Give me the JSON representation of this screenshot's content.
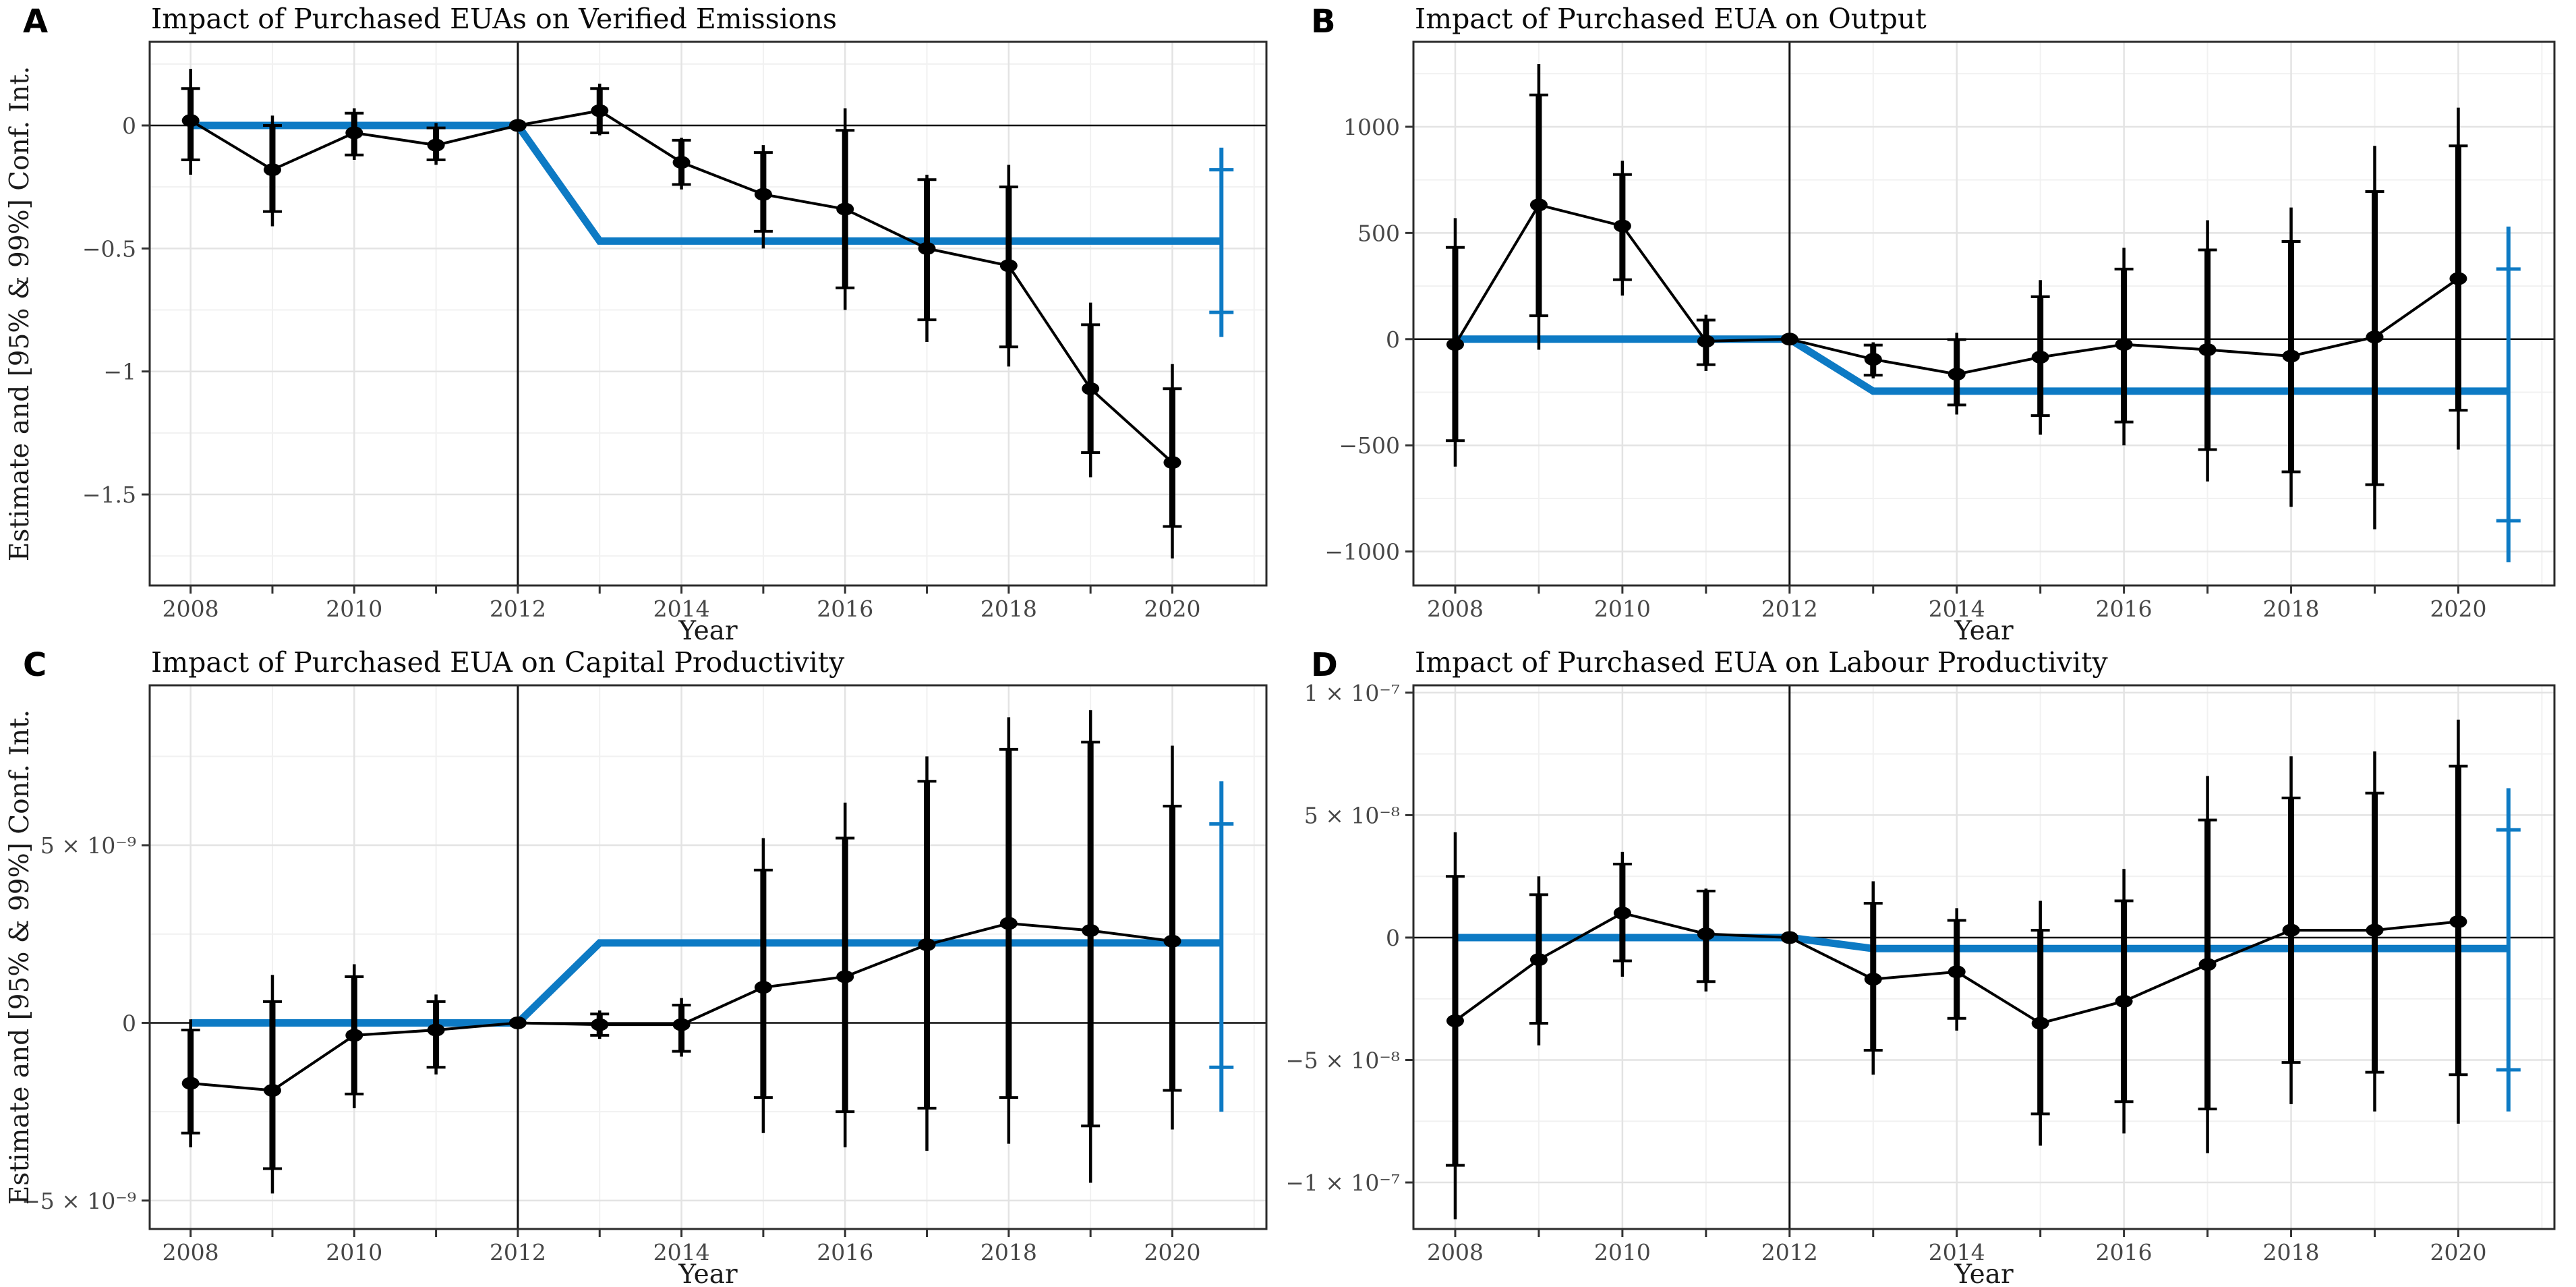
{
  "colors": {
    "policy_blue": "#0d7ac4",
    "series_black": "#000000",
    "grid_major": "#e3e3e3",
    "grid_minor": "#f1f1f1",
    "panel_border": "#2b2b2b",
    "axis_line": "#111111",
    "tick_label": "#474747",
    "background": "#ffffff"
  },
  "chart_data": [
    {
      "type": "line",
      "panel_label": "A",
      "title": "Impact of Purchased EUAs on Verified Emissions",
      "xlabel": "Year",
      "ylabel": "Estimate and [95% & 99%] Conf. Int.",
      "legend_position": "none",
      "grid": true,
      "x": [
        2008,
        2009,
        2010,
        2011,
        2012,
        2013,
        2014,
        2015,
        2016,
        2017,
        2018,
        2019,
        2020
      ],
      "reference_year": 2012,
      "estimates": [
        0.02,
        -0.18,
        -0.03,
        -0.08,
        0,
        0.06,
        -0.15,
        -0.28,
        -0.34,
        -0.5,
        -0.57,
        -1.07,
        -1.37
      ],
      "ci99_lower": [
        -0.2,
        -0.41,
        -0.14,
        -0.16,
        0,
        -0.04,
        -0.26,
        -0.5,
        -0.75,
        -0.88,
        -0.98,
        -1.43,
        -1.76
      ],
      "ci99_upper": [
        0.23,
        0.04,
        0.07,
        0.01,
        0,
        0.17,
        -0.05,
        -0.08,
        0.07,
        -0.2,
        -0.16,
        -0.72,
        -0.97
      ],
      "ci95_lower": [
        -0.14,
        -0.35,
        -0.12,
        -0.14,
        0,
        -0.03,
        -0.24,
        -0.43,
        -0.66,
        -0.79,
        -0.9,
        -1.33,
        -1.63
      ],
      "ci95_upper": [
        0.15,
        0.0,
        0.05,
        -0.01,
        0,
        0.15,
        -0.06,
        -0.11,
        -0.02,
        -0.22,
        -0.25,
        -0.81,
        -1.07
      ],
      "policy_line": {
        "pre_value": 0,
        "post_value": -0.47,
        "start_x": 2008,
        "break_x": 2012,
        "step_x": 2013,
        "end_x": 2020.6
      },
      "policy_end_ci": {
        "x": 2020.6,
        "ci99": [
          -0.86,
          -0.09
        ],
        "ci95": [
          -0.76,
          -0.18
        ]
      },
      "vline_x": 2012,
      "hline_y": 0,
      "xlim": [
        2007.5,
        2021.15
      ],
      "ylim": [
        -1.87,
        0.34
      ],
      "xticks": [
        2008,
        2010,
        2012,
        2014,
        2016,
        2018,
        2020
      ],
      "xticks_minor": [
        2009,
        2011,
        2013,
        2015,
        2017,
        2019,
        2021
      ],
      "yticks": [
        {
          "value": 0,
          "label": "0"
        },
        {
          "value": -0.5,
          "label": "−0.5"
        },
        {
          "value": -1,
          "label": "−1"
        },
        {
          "value": -1.5,
          "label": "−1.5"
        }
      ],
      "yticks_minor": [
        0.25,
        -0.25,
        -0.75,
        -1.25,
        -1.75
      ]
    },
    {
      "type": "line",
      "panel_label": "B",
      "title": "Impact of Purchased EUA on Output",
      "xlabel": "Year",
      "ylabel": "",
      "legend_position": "none",
      "grid": true,
      "x": [
        2008,
        2009,
        2010,
        2011,
        2012,
        2013,
        2014,
        2015,
        2016,
        2017,
        2018,
        2019,
        2020
      ],
      "reference_year": 2012,
      "estimates": [
        -25,
        632,
        533,
        -10,
        0,
        -95,
        -165,
        -85,
        -25,
        -50,
        -80,
        10,
        285
      ],
      "ci99_lower": [
        -600,
        -50,
        205,
        -150,
        0,
        -185,
        -355,
        -450,
        -500,
        -670,
        -790,
        -895,
        -520
      ],
      "ci99_upper": [
        570,
        1295,
        840,
        115,
        0,
        -15,
        30,
        278,
        430,
        560,
        620,
        910,
        1090
      ],
      "ci95_lower": [
        -478,
        110,
        280,
        -120,
        0,
        -170,
        -310,
        -360,
        -390,
        -520,
        -625,
        -685,
        -335
      ],
      "ci95_upper": [
        432,
        1150,
        775,
        90,
        0,
        -28,
        -2,
        200,
        330,
        420,
        460,
        695,
        910
      ],
      "policy_line": {
        "pre_value": 0,
        "post_value": -245,
        "start_x": 2008,
        "break_x": 2012,
        "step_x": 2013,
        "end_x": 2020.6
      },
      "policy_end_ci": {
        "x": 2020.6,
        "ci99": [
          -1050,
          530
        ],
        "ci95": [
          -855,
          330
        ]
      },
      "vline_x": 2012,
      "hline_y": 0,
      "xlim": [
        2007.5,
        2021.15
      ],
      "ylim": [
        -1160,
        1400
      ],
      "xticks": [
        2008,
        2010,
        2012,
        2014,
        2016,
        2018,
        2020
      ],
      "xticks_minor": [
        2009,
        2011,
        2013,
        2015,
        2017,
        2019,
        2021
      ],
      "yticks": [
        {
          "value": 1000,
          "label": "1000"
        },
        {
          "value": 500,
          "label": "500"
        },
        {
          "value": 0,
          "label": "0"
        },
        {
          "value": -500,
          "label": "−500"
        },
        {
          "value": -1000,
          "label": "−1000"
        }
      ],
      "yticks_minor": [
        1250,
        750,
        250,
        -250,
        -750
      ]
    },
    {
      "type": "line",
      "panel_label": "C",
      "title": "Impact of Purchased EUA on Capital Productivity",
      "xlabel": "Year",
      "ylabel": "Estimate and [95% & 99%] Conf. Int.",
      "legend_position": "none",
      "grid": true,
      "y_unit_exponent": -9,
      "x": [
        2008,
        2009,
        2010,
        2011,
        2012,
        2013,
        2014,
        2015,
        2016,
        2017,
        2018,
        2019,
        2020
      ],
      "reference_year": 2012,
      "estimates": [
        -1.7,
        -1.9,
        -0.35,
        -0.2,
        0,
        -0.05,
        -0.05,
        1.0,
        1.3,
        2.2,
        2.8,
        2.6,
        2.3
      ],
      "ci99_lower": [
        -3.5,
        -4.8,
        -2.4,
        -1.45,
        0,
        -0.45,
        -0.95,
        -3.1,
        -3.5,
        -3.6,
        -3.4,
        -4.5,
        -3.0
      ],
      "ci99_upper": [
        0.1,
        1.35,
        1.65,
        0.8,
        0,
        0.35,
        0.7,
        5.2,
        6.2,
        7.5,
        8.6,
        8.8,
        7.8
      ],
      "ci95_lower": [
        -3.1,
        -4.1,
        -2.0,
        -1.25,
        0,
        -0.35,
        -0.8,
        -2.1,
        -2.5,
        -2.4,
        -2.1,
        -2.9,
        -1.9
      ],
      "ci95_upper": [
        -0.2,
        0.6,
        1.3,
        0.6,
        0,
        0.25,
        0.5,
        4.3,
        5.2,
        6.8,
        7.7,
        7.9,
        6.1
      ],
      "policy_line": {
        "pre_value": 0,
        "post_value": 2.25,
        "start_x": 2008,
        "break_x": 2012,
        "step_x": 2013,
        "end_x": 2020.6
      },
      "policy_end_ci": {
        "x": 2020.6,
        "ci99": [
          -2.5,
          6.8
        ],
        "ci95": [
          -1.25,
          5.6
        ]
      },
      "vline_x": 2012,
      "hline_y": 0,
      "xlim": [
        2007.5,
        2021.15
      ],
      "ylim": [
        -5.8,
        9.5
      ],
      "xticks": [
        2008,
        2010,
        2012,
        2014,
        2016,
        2018,
        2020
      ],
      "xticks_minor": [
        2009,
        2011,
        2013,
        2015,
        2017,
        2019,
        2021
      ],
      "yticks": [
        {
          "value": 5,
          "label": "5 × 10⁻⁹"
        },
        {
          "value": 0,
          "label": "0"
        },
        {
          "value": -5,
          "label": "−5 × 10⁻⁹"
        }
      ],
      "yticks_minor": [
        7.5,
        2.5,
        -2.5
      ]
    },
    {
      "type": "line",
      "panel_label": "D",
      "title": "Impact of Purchased EUA on Labour Productivity",
      "xlabel": "Year",
      "ylabel": "",
      "legend_position": "none",
      "grid": true,
      "y_unit_exponent": -8,
      "x": [
        2008,
        2009,
        2010,
        2011,
        2012,
        2013,
        2014,
        2015,
        2016,
        2017,
        2018,
        2019,
        2020
      ],
      "reference_year": 2012,
      "estimates": [
        -3.4,
        -0.9,
        1.0,
        0.15,
        0,
        -1.7,
        -1.4,
        -3.5,
        -2.6,
        -1.1,
        0.3,
        0.3,
        0.65
      ],
      "ci99_lower": [
        -11.5,
        -4.4,
        -1.6,
        -2.2,
        0,
        -5.6,
        -3.8,
        -8.5,
        -8.0,
        -8.8,
        -6.8,
        -7.1,
        -7.6
      ],
      "ci99_upper": [
        4.3,
        2.5,
        3.5,
        2.0,
        0,
        2.3,
        1.2,
        1.5,
        2.8,
        6.6,
        7.4,
        7.6,
        8.9
      ],
      "ci95_lower": [
        -9.3,
        -3.5,
        -0.95,
        -1.8,
        0,
        -4.6,
        -3.3,
        -7.2,
        -6.7,
        -7.0,
        -5.1,
        -5.5,
        -5.6
      ],
      "ci95_upper": [
        2.5,
        1.75,
        3.0,
        1.9,
        0,
        1.4,
        0.7,
        0.3,
        1.5,
        4.8,
        5.7,
        5.9,
        7.0
      ],
      "policy_line": {
        "pre_value": 0,
        "post_value": -0.45,
        "start_x": 2008,
        "break_x": 2012,
        "step_x": 2013,
        "end_x": 2020.6
      },
      "policy_end_ci": {
        "x": 2020.6,
        "ci99": [
          -7.1,
          6.1
        ],
        "ci95": [
          -5.4,
          4.4
        ]
      },
      "vline_x": 2012,
      "hline_y": 0,
      "xlim": [
        2007.5,
        2021.15
      ],
      "ylim": [
        -11.9,
        10.3
      ],
      "xticks": [
        2008,
        2010,
        2012,
        2014,
        2016,
        2018,
        2020
      ],
      "xticks_minor": [
        2009,
        2011,
        2013,
        2015,
        2017,
        2019,
        2021
      ],
      "yticks": [
        {
          "value": 10,
          "label": "1 × 10⁻⁷"
        },
        {
          "value": 5,
          "label": "5 × 10⁻⁸"
        },
        {
          "value": 0,
          "label": "0"
        },
        {
          "value": -5,
          "label": "−5 × 10⁻⁸"
        },
        {
          "value": -10,
          "label": "−1 × 10⁻⁷"
        }
      ],
      "yticks_minor": [
        7.5,
        2.5,
        -2.5,
        -7.5
      ]
    }
  ]
}
